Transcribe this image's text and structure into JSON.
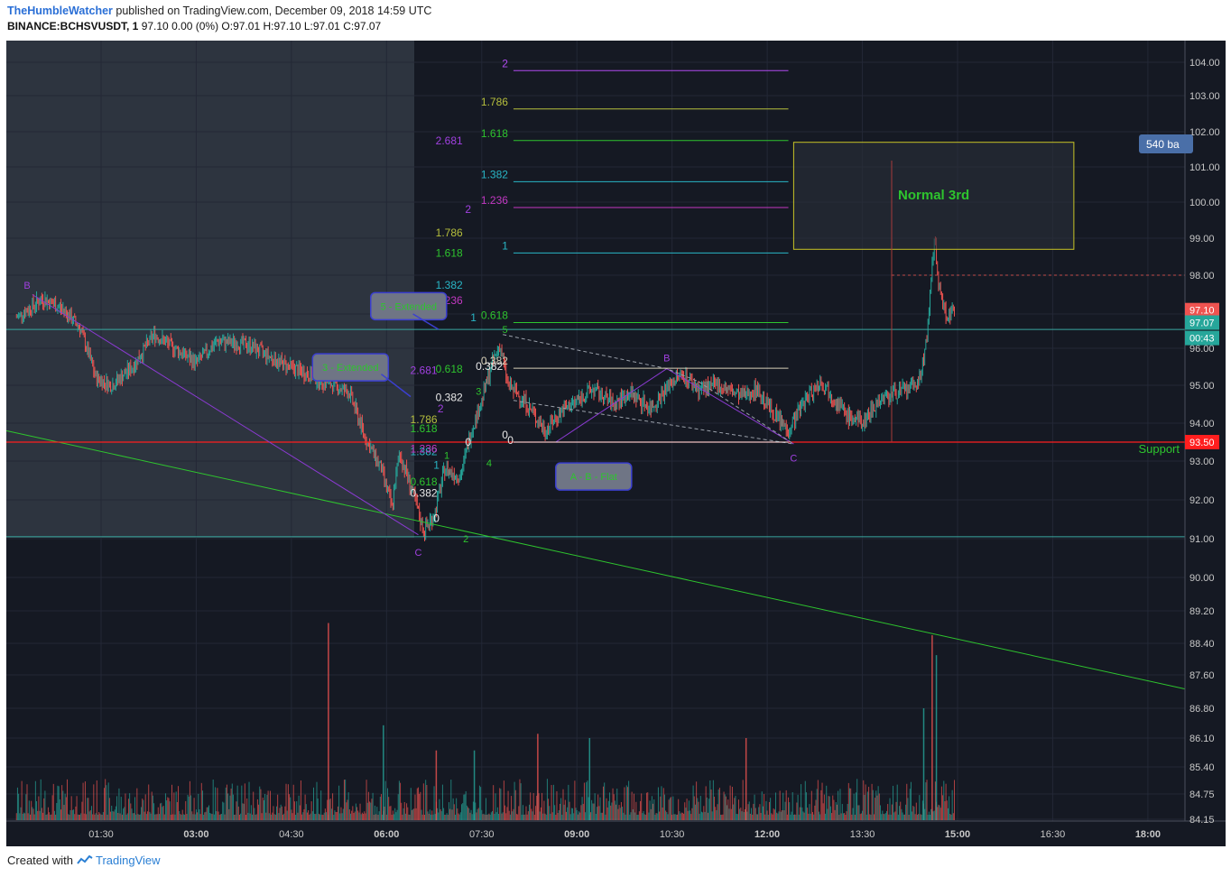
{
  "header": {
    "author": "TheHumbleWatcher",
    "published_text": "published on TradingView.com, December 09, 2018 14:59 UTC",
    "symbol": "BINANCE:BCHSVUSDT, 1",
    "ohlc_text": "97.10 0.00 (0%) O:97.01 H:97.10 L:97.01 C:97.07"
  },
  "footer": {
    "created_with": "Created with",
    "brand": "TradingView"
  },
  "colors": {
    "background": "#151923",
    "shaded_region": "#363d4a",
    "up_candle": "#26a69a",
    "down_candle": "#ef5350",
    "support_line": "#ff1e1e",
    "trendline": "#2ec42e",
    "wave_line": "#8a3ad1",
    "box_border": "#c8c326"
  },
  "chart_data": {
    "type": "candlestick",
    "ylim": [
      84.15,
      104.4
    ],
    "y_ticks": [
      "104.00",
      "103.00",
      "102.00",
      "101.00",
      "100.00",
      "99.00",
      "98.00",
      "97.00",
      "96.00",
      "95.00",
      "94.00",
      "93.00",
      "92.00",
      "91.00",
      "90.00",
      "89.20",
      "88.40",
      "87.60",
      "86.80",
      "86.10",
      "85.40",
      "84.75",
      "84.15"
    ],
    "x_ticks": [
      "01:30",
      "03:00",
      "04:30",
      "06:00",
      "07:30",
      "09:00",
      "10:30",
      "12:00",
      "13:30",
      "15:00",
      "16:30",
      "18:00"
    ],
    "x_tick_bold": [
      false,
      true,
      false,
      true,
      false,
      true,
      false,
      true,
      false,
      true,
      false,
      true
    ],
    "price_path": [
      [
        "00:10",
        96.9
      ],
      [
        "00:35",
        97.4
      ],
      [
        "00:55",
        97.1
      ],
      [
        "01:10",
        96.6
      ],
      [
        "01:25",
        95.2
      ],
      [
        "01:40",
        95.0
      ],
      [
        "02:00",
        95.5
      ],
      [
        "02:20",
        96.4
      ],
      [
        "02:35",
        96.1
      ],
      [
        "03:00",
        95.6
      ],
      [
        "03:20",
        96.2
      ],
      [
        "03:50",
        96.1
      ],
      [
        "04:20",
        95.6
      ],
      [
        "04:45",
        95.3
      ],
      [
        "05:10",
        95.0
      ],
      [
        "05:25",
        94.8
      ],
      [
        "05:40",
        93.6
      ],
      [
        "05:55",
        92.8
      ],
      [
        "06:05",
        91.8
      ],
      [
        "06:12",
        93.2
      ],
      [
        "06:20",
        92.6
      ],
      [
        "06:35",
        91.2
      ],
      [
        "06:45",
        91.6
      ],
      [
        "06:55",
        92.8
      ],
      [
        "07:10",
        92.6
      ],
      [
        "07:20",
        93.8
      ],
      [
        "07:30",
        94.6
      ],
      [
        "07:40",
        95.6
      ],
      [
        "07:47",
        96.1
      ],
      [
        "07:55",
        95.0
      ],
      [
        "08:10",
        94.6
      ],
      [
        "08:30",
        93.8
      ],
      [
        "08:45",
        94.3
      ],
      [
        "09:00",
        94.6
      ],
      [
        "09:15",
        94.9
      ],
      [
        "09:35",
        94.5
      ],
      [
        "09:50",
        94.8
      ],
      [
        "10:10",
        94.4
      ],
      [
        "10:30",
        95.1
      ],
      [
        "10:40",
        95.3
      ],
      [
        "10:55",
        94.9
      ],
      [
        "11:15",
        95.0
      ],
      [
        "11:35",
        94.7
      ],
      [
        "11:50",
        94.9
      ],
      [
        "12:05",
        94.3
      ],
      [
        "12:20",
        93.8
      ],
      [
        "12:35",
        94.6
      ],
      [
        "12:50",
        95.1
      ],
      [
        "13:00",
        94.8
      ],
      [
        "13:15",
        94.2
      ],
      [
        "13:30",
        94.0
      ],
      [
        "13:45",
        94.6
      ],
      [
        "14:00",
        94.8
      ],
      [
        "14:15",
        94.9
      ],
      [
        "14:25",
        95.2
      ],
      [
        "14:32",
        96.6
      ],
      [
        "14:38",
        99.0
      ],
      [
        "14:43",
        97.6
      ],
      [
        "14:50",
        96.9
      ],
      [
        "14:57",
        97.07
      ]
    ],
    "volume_spikes": [
      [
        "05:05",
        88.9
      ],
      [
        "05:57",
        86.4
      ],
      [
        "06:47",
        85.8
      ],
      [
        "07:23",
        85.8
      ],
      [
        "08:23",
        86.2
      ],
      [
        "09:12",
        86.1
      ],
      [
        "11:40",
        86.1
      ],
      [
        "14:28",
        86.8
      ],
      [
        "14:36",
        88.6
      ],
      [
        "14:40",
        88.1
      ]
    ],
    "fib_levels": [
      {
        "label": "2",
        "price": 103.75,
        "color": "#b04bf0",
        "x_range": [
          "08:00",
          "12:20"
        ]
      },
      {
        "label": "1.786",
        "price": 102.63,
        "color": "#b6bf3d",
        "x_range": [
          "08:00",
          "12:20"
        ]
      },
      {
        "label": "1.618",
        "price": 101.75,
        "color": "#2ec42e",
        "x_range": [
          "08:00",
          "12:20"
        ]
      },
      {
        "label": "1.382",
        "price": 100.58,
        "color": "#29b6c6",
        "x_range": [
          "08:00",
          "12:20"
        ]
      },
      {
        "label": "1.236",
        "price": 99.85,
        "color": "#c238c2",
        "x_range": [
          "08:00",
          "12:20"
        ]
      },
      {
        "label": "1",
        "price": 98.6,
        "color": "#29b6c6",
        "x_range": [
          "08:00",
          "12:20"
        ]
      },
      {
        "label": "0.618",
        "price": 96.75,
        "color": "#2ec42e",
        "x_range": [
          "08:00",
          "12:20"
        ]
      },
      {
        "label": "0.382",
        "price": 95.46,
        "color": "#d8d0b8",
        "x_range": [
          "08:00",
          "12:20"
        ]
      },
      {
        "label": "0",
        "price": 93.5,
        "color": "#e8e8e8",
        "x_range": [
          "08:00",
          "12:20"
        ]
      }
    ],
    "fib_side_labels": [
      {
        "label": "2.681",
        "price": 101.75,
        "color": "#a040e0",
        "time": "07:12"
      },
      {
        "label": "2",
        "price": 99.8,
        "color": "#a040e0",
        "time": "07:20"
      },
      {
        "label": "1.786",
        "price": 99.15,
        "color": "#b6bf3d",
        "time": "07:12"
      },
      {
        "label": "1.618",
        "price": 98.6,
        "color": "#2ec42e",
        "time": "07:12"
      },
      {
        "label": "1.382",
        "price": 97.75,
        "color": "#29b6c6",
        "time": "07:12"
      },
      {
        "label": "1.236",
        "price": 97.35,
        "color": "#c238c2",
        "time": "07:12"
      },
      {
        "label": "1",
        "price": 96.9,
        "color": "#29b6c6",
        "time": "07:25"
      },
      {
        "label": "2.681",
        "price": 95.4,
        "color": "#a040e0",
        "time": "06:48"
      },
      {
        "label": "0.618",
        "price": 95.44,
        "color": "#2ec42e",
        "time": "07:12"
      },
      {
        "label": "0.382",
        "price": 95.51,
        "color": "#e8e8e8",
        "time": "07:50"
      },
      {
        "label": "0.382",
        "price": 94.68,
        "color": "#e8e8e8",
        "time": "07:12"
      },
      {
        "label": "2",
        "price": 94.38,
        "color": "#a040e0",
        "time": "06:54"
      },
      {
        "label": "1.786",
        "price": 94.1,
        "color": "#b6bf3d",
        "time": "06:48"
      },
      {
        "label": "1.618",
        "price": 93.86,
        "color": "#2ec42e",
        "time": "06:48"
      },
      {
        "label": "0",
        "price": 93.5,
        "color": "#e8e8e8",
        "time": "07:20"
      },
      {
        "label": "0",
        "price": 93.55,
        "color": "#e8e8e8",
        "time": "08:00"
      },
      {
        "label": "1.382",
        "price": 93.25,
        "color": "#29b6c6",
        "time": "06:48"
      },
      {
        "label": "1.236",
        "price": 93.32,
        "color": "#c238c2",
        "time": "06:48"
      },
      {
        "label": "1",
        "price": 92.9,
        "color": "#29b6c6",
        "time": "06:50"
      },
      {
        "label": "0.618",
        "price": 92.47,
        "color": "#2ec42e",
        "time": "06:48"
      },
      {
        "label": "0.382",
        "price": 92.17,
        "color": "#e8e8e8",
        "time": "06:48"
      },
      {
        "label": "0",
        "price": 91.52,
        "color": "#e8e8e8",
        "time": "06:50"
      }
    ],
    "wave_labels": [
      {
        "label": "B",
        "price": 97.74,
        "time": "00:20",
        "color": "#a040e0"
      },
      {
        "label": "C",
        "price": 90.65,
        "time": "06:30",
        "color": "#a040e0"
      },
      {
        "label": "1",
        "price": 93.15,
        "time": "06:57",
        "color": "#2ec42e"
      },
      {
        "label": "2",
        "price": 91.0,
        "time": "07:15",
        "color": "#2ec42e"
      },
      {
        "label": "3",
        "price": 94.85,
        "time": "07:27",
        "color": "#2ec42e"
      },
      {
        "label": "4",
        "price": 92.95,
        "time": "07:37",
        "color": "#2ec42e"
      },
      {
        "label": "5",
        "price": 96.55,
        "time": "07:52",
        "color": "#2ec42e"
      },
      {
        "label": "B",
        "price": 95.75,
        "time": "10:25",
        "color": "#a040e0"
      },
      {
        "label": "C",
        "price": 93.08,
        "time": "12:25",
        "color": "#a040e0"
      }
    ],
    "callouts": [
      {
        "text": "5 - Extended",
        "time": "05:45",
        "price": 97.55
      },
      {
        "text": "3 - Extended",
        "time": "04:50",
        "price": 95.85
      },
      {
        "text": "A - B - Flat",
        "time": "08:40",
        "price": 92.95
      }
    ],
    "box": {
      "text": "Normal 3rd",
      "t0": "12:25",
      "t1": "16:50",
      "p0": 98.7,
      "p1": 101.7
    },
    "support": {
      "label": "Support",
      "price": 93.5
    },
    "horizontal_lines": [
      96.55,
      91.05
    ],
    "price_badges": [
      {
        "text": "97.10",
        "price": 97.1,
        "color": "#ef5350"
      },
      {
        "text": "97.07",
        "price": 96.75,
        "color": "#26a69a"
      },
      {
        "text": "00:43",
        "price": 96.3,
        "color": "#26a69a"
      },
      {
        "text": "93.50",
        "price": 93.5,
        "color": "#ff1e1e"
      }
    ],
    "bars_badge": "540 ba"
  }
}
